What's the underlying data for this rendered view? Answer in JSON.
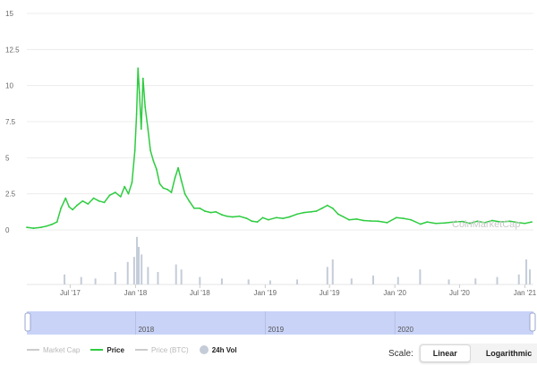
{
  "chart_data": {
    "type": "line",
    "watermark": "CoinMarketCap",
    "y_ticks": [
      "0",
      "2.5",
      "5",
      "7.5",
      "10",
      "12.5",
      "15"
    ],
    "ylim": [
      0,
      15
    ],
    "x_ticks": [
      "Jul '17",
      "Jan '18",
      "Jul '18",
      "Jan '19",
      "Jul '19",
      "Jan '20",
      "Jul '20",
      "Jan '21"
    ],
    "navigator_ticks": [
      "2018",
      "2019",
      "2020"
    ],
    "series": [
      {
        "name": "Price",
        "color": "#2ecc40",
        "x": [
          "2017-03-01",
          "2017-03-20",
          "2017-04-10",
          "2017-04-25",
          "2017-05-10",
          "2017-05-25",
          "2017-06-05",
          "2017-06-18",
          "2017-06-28",
          "2017-07-08",
          "2017-07-20",
          "2017-08-05",
          "2017-08-20",
          "2017-09-05",
          "2017-09-20",
          "2017-10-05",
          "2017-10-20",
          "2017-11-05",
          "2017-11-20",
          "2017-12-01",
          "2017-12-12",
          "2017-12-22",
          "2017-12-30",
          "2018-01-04",
          "2018-01-08",
          "2018-01-12",
          "2018-01-17",
          "2018-01-22",
          "2018-01-28",
          "2018-02-05",
          "2018-02-12",
          "2018-02-20",
          "2018-03-01",
          "2018-03-10",
          "2018-03-20",
          "2018-04-01",
          "2018-04-12",
          "2018-04-22",
          "2018-05-01",
          "2018-05-10",
          "2018-05-20",
          "2018-06-01",
          "2018-06-15",
          "2018-07-01",
          "2018-07-15",
          "2018-08-01",
          "2018-08-15",
          "2018-09-01",
          "2018-09-15",
          "2018-10-01",
          "2018-10-20",
          "2018-11-10",
          "2018-11-25",
          "2018-12-10",
          "2018-12-25",
          "2019-01-10",
          "2019-02-01",
          "2019-02-20",
          "2019-03-10",
          "2019-04-01",
          "2019-04-20",
          "2019-05-10",
          "2019-05-25",
          "2019-06-10",
          "2019-06-25",
          "2019-07-10",
          "2019-07-25",
          "2019-08-10",
          "2019-08-25",
          "2019-09-15",
          "2019-10-05",
          "2019-10-25",
          "2019-11-15",
          "2019-12-10",
          "2020-01-05",
          "2020-01-25",
          "2020-02-15",
          "2020-03-13",
          "2020-04-01",
          "2020-04-25",
          "2020-05-20",
          "2020-06-15",
          "2020-07-10",
          "2020-07-30",
          "2020-08-20",
          "2020-09-10",
          "2020-10-01",
          "2020-10-25",
          "2020-11-20",
          "2020-12-10",
          "2021-01-01",
          "2021-01-20"
        ],
        "values": [
          0.18,
          0.12,
          0.18,
          0.26,
          0.38,
          0.55,
          1.5,
          2.2,
          1.6,
          1.4,
          1.7,
          2.0,
          1.8,
          2.2,
          2.0,
          1.9,
          2.4,
          2.6,
          2.3,
          3.0,
          2.5,
          3.3,
          5.5,
          8.0,
          11.2,
          9.5,
          7.0,
          10.5,
          8.5,
          7.0,
          5.5,
          4.8,
          4.2,
          3.2,
          2.9,
          2.8,
          2.6,
          3.6,
          4.3,
          3.4,
          2.5,
          2.0,
          1.5,
          1.5,
          1.3,
          1.2,
          1.25,
          1.05,
          0.95,
          0.9,
          0.95,
          0.8,
          0.6,
          0.55,
          0.85,
          0.7,
          0.85,
          0.8,
          0.9,
          1.1,
          1.2,
          1.25,
          1.3,
          1.5,
          1.7,
          1.5,
          1.1,
          0.9,
          0.7,
          0.75,
          0.65,
          0.62,
          0.6,
          0.5,
          0.85,
          0.8,
          0.7,
          0.4,
          0.55,
          0.45,
          0.48,
          0.55,
          0.58,
          0.45,
          0.6,
          0.5,
          0.65,
          0.55,
          0.6,
          0.52,
          0.45,
          0.55
        ]
      }
    ],
    "volume": {
      "name": "24h Vol",
      "color": "#c4ccd8",
      "x": [
        "2017-06-15",
        "2017-08-01",
        "2017-09-10",
        "2017-11-05",
        "2017-12-10",
        "2017-12-28",
        "2018-01-05",
        "2018-01-10",
        "2018-01-18",
        "2018-02-05",
        "2018-03-05",
        "2018-04-25",
        "2018-05-10",
        "2018-07-01",
        "2018-09-01",
        "2018-11-15",
        "2019-01-15",
        "2019-04-01",
        "2019-06-25",
        "2019-07-10",
        "2019-09-01",
        "2019-11-01",
        "2020-01-10",
        "2020-03-12",
        "2020-06-01",
        "2020-08-15",
        "2020-10-15",
        "2020-12-15",
        "2021-01-05",
        "2021-01-15"
      ],
      "values": [
        0.2,
        0.15,
        0.12,
        0.25,
        0.45,
        0.55,
        0.95,
        0.75,
        0.6,
        0.35,
        0.25,
        0.4,
        0.3,
        0.15,
        0.12,
        0.1,
        0.08,
        0.1,
        0.35,
        0.5,
        0.12,
        0.18,
        0.15,
        0.3,
        0.1,
        0.12,
        0.15,
        0.2,
        0.5,
        0.3
      ]
    },
    "legend": [
      {
        "label": "Market Cap",
        "state": "off",
        "color": "#cccccc",
        "symbol": "line"
      },
      {
        "label": "Price",
        "state": "on",
        "color": "#2ecc40",
        "symbol": "line"
      },
      {
        "label": "Price (BTC)",
        "state": "off",
        "color": "#cccccc",
        "symbol": "line"
      },
      {
        "label": "24h Vol",
        "state": "on",
        "color": "#c4ccd8",
        "symbol": "dot"
      }
    ],
    "grid": true
  },
  "scale": {
    "label": "Scale:",
    "options": [
      "Linear",
      "Logarithmic"
    ],
    "active": "Linear"
  }
}
